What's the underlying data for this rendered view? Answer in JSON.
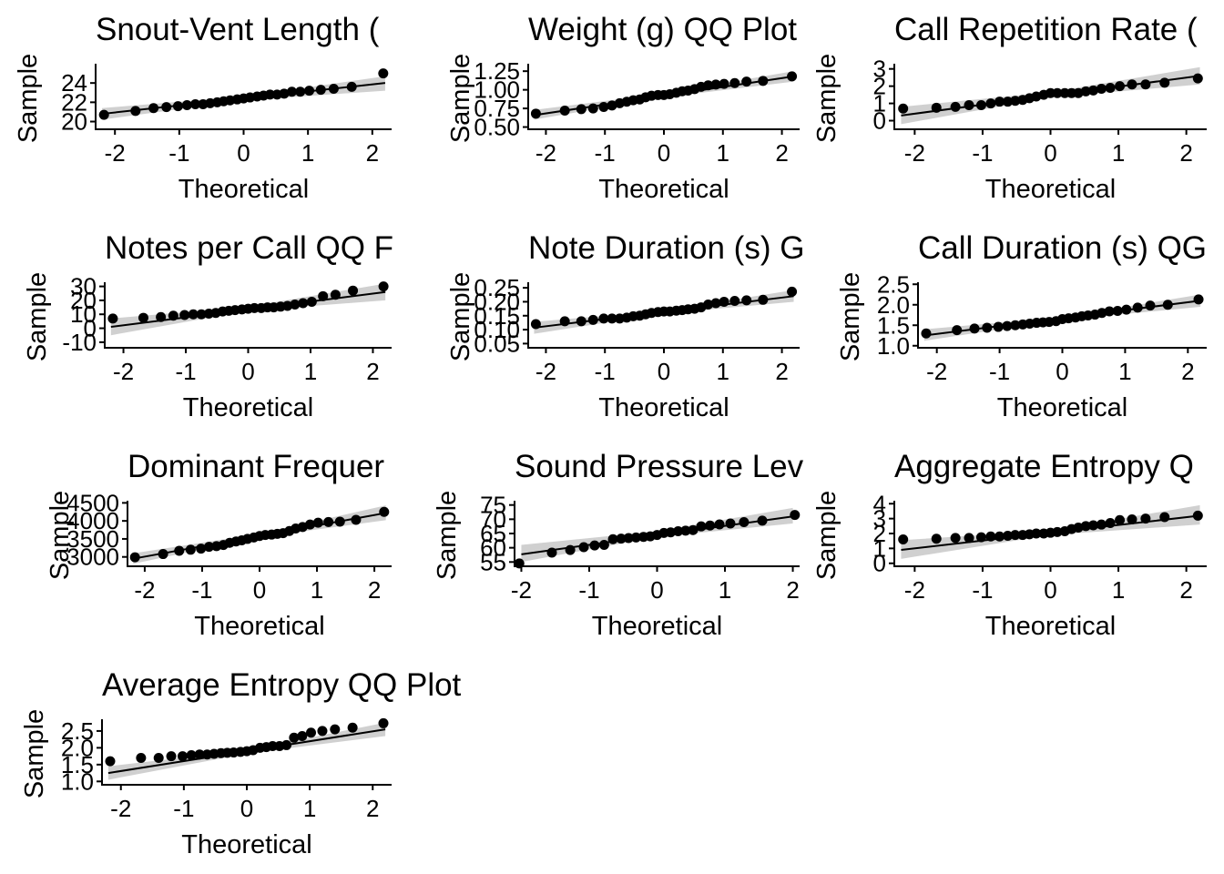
{
  "chart_data": [
    {
      "type": "scatter",
      "title": "Snout-Vent Length (",
      "xlabel": "Theoretical",
      "ylabel": "Sample",
      "xlim": [
        -2.3,
        2.3
      ],
      "ylim": [
        19.2,
        26.0
      ],
      "xticks": [
        -2,
        -1,
        0,
        1,
        2
      ],
      "xtick_labels": [
        "-2",
        "-1",
        "0",
        "1",
        "2"
      ],
      "yticks": [
        20,
        22,
        24
      ],
      "ytick_labels": [
        "20",
        "22",
        "24"
      ],
      "line": [
        [
          -2.2,
          20.8
        ],
        [
          2.2,
          24.0
        ]
      ],
      "band": [
        [
          -2.2,
          20.2,
          21.4
        ],
        [
          0,
          22.2,
          22.6
        ],
        [
          2.2,
          23.2,
          24.7
        ]
      ],
      "x": [
        -2.17,
        -1.68,
        -1.4,
        -1.2,
        -1.02,
        -0.88,
        -0.75,
        -0.63,
        -0.52,
        -0.41,
        -0.31,
        -0.21,
        -0.1,
        0,
        0.1,
        0.21,
        0.31,
        0.41,
        0.52,
        0.63,
        0.75,
        0.88,
        1.02,
        1.2,
        1.4,
        1.68,
        2.17
      ],
      "y": [
        20.7,
        21.1,
        21.4,
        21.5,
        21.6,
        21.7,
        21.8,
        21.8,
        21.9,
        22.0,
        22.1,
        22.2,
        22.3,
        22.4,
        22.5,
        22.6,
        22.7,
        22.8,
        22.8,
        22.9,
        23.1,
        23.1,
        23.2,
        23.3,
        23.4,
        23.6,
        25.0
      ]
    },
    {
      "type": "scatter",
      "title": "Weight (g) QQ Plot",
      "xlabel": "Theoretical",
      "ylabel": "Sample",
      "xlim": [
        -2.3,
        2.3
      ],
      "ylim": [
        0.47,
        1.35
      ],
      "xticks": [
        -2,
        -1,
        0,
        1,
        2
      ],
      "xtick_labels": [
        "-2",
        "-1",
        "0",
        "1",
        "2"
      ],
      "yticks": [
        0.5,
        0.75,
        1.0,
        1.25
      ],
      "ytick_labels": [
        "0.50",
        "0.75",
        "1.00",
        "1.25"
      ],
      "line": [
        [
          -2.2,
          0.66
        ],
        [
          2.2,
          1.18
        ]
      ],
      "band": [
        [
          -2.2,
          0.6,
          0.73
        ],
        [
          0,
          0.9,
          0.95
        ],
        [
          2.2,
          1.11,
          1.25
        ]
      ],
      "x": [
        -2.17,
        -1.68,
        -1.4,
        -1.2,
        -1.02,
        -0.88,
        -0.75,
        -0.63,
        -0.52,
        -0.41,
        -0.31,
        -0.21,
        -0.1,
        0,
        0.1,
        0.21,
        0.31,
        0.41,
        0.52,
        0.63,
        0.75,
        0.88,
        1.02,
        1.2,
        1.4,
        1.68,
        2.17
      ],
      "y": [
        0.68,
        0.72,
        0.74,
        0.75,
        0.77,
        0.79,
        0.82,
        0.84,
        0.86,
        0.87,
        0.9,
        0.92,
        0.93,
        0.93,
        0.94,
        0.96,
        0.98,
        0.99,
        1.01,
        1.04,
        1.06,
        1.07,
        1.08,
        1.09,
        1.11,
        1.12,
        1.18
      ]
    },
    {
      "type": "scatter",
      "title": "Call Repetition Rate (",
      "xlabel": "Theoretical",
      "ylabel": "Sample",
      "xlim": [
        -2.3,
        2.3
      ],
      "ylim": [
        -0.5,
        3.3
      ],
      "xticks": [
        -2,
        -1,
        0,
        1,
        2
      ],
      "xtick_labels": [
        "-2",
        "-1",
        "0",
        "1",
        "2"
      ],
      "yticks": [
        0,
        1,
        2,
        3
      ],
      "ytick_labels": [
        "0",
        "1",
        "2",
        "3"
      ],
      "line": [
        [
          -2.2,
          0.3
        ],
        [
          2.2,
          2.6
        ]
      ],
      "band": [
        [
          -2.2,
          -0.2,
          0.8
        ],
        [
          0,
          1.35,
          1.65
        ],
        [
          2.2,
          2.1,
          3.1
        ]
      ],
      "x": [
        -2.17,
        -1.68,
        -1.4,
        -1.2,
        -1.02,
        -0.88,
        -0.75,
        -0.63,
        -0.52,
        -0.41,
        -0.31,
        -0.21,
        -0.1,
        0,
        0.1,
        0.21,
        0.31,
        0.41,
        0.52,
        0.63,
        0.75,
        0.88,
        1.02,
        1.2,
        1.4,
        1.68,
        2.17
      ],
      "y": [
        0.7,
        0.75,
        0.8,
        0.9,
        0.9,
        1.0,
        1.1,
        1.1,
        1.15,
        1.2,
        1.3,
        1.4,
        1.5,
        1.6,
        1.6,
        1.6,
        1.6,
        1.6,
        1.7,
        1.75,
        1.85,
        1.9,
        2.0,
        2.1,
        2.1,
        2.2,
        2.45
      ]
    },
    {
      "type": "scatter",
      "title": "Notes per Call QQ F",
      "xlabel": "Theoretical",
      "ylabel": "Sample",
      "xlim": [
        -2.3,
        2.3
      ],
      "ylim": [
        -14,
        33
      ],
      "xticks": [
        -2,
        -1,
        0,
        1,
        2
      ],
      "xtick_labels": [
        "-2",
        "-1",
        "0",
        "1",
        "2"
      ],
      "yticks": [
        -10,
        0,
        10,
        20,
        30
      ],
      "ytick_labels": [
        "-10",
        "0",
        "10",
        "20",
        "30"
      ],
      "line": [
        [
          -2.2,
          1
        ],
        [
          2.2,
          26
        ]
      ],
      "band": [
        [
          -2.2,
          -5,
          7
        ],
        [
          0,
          12.5,
          15.5
        ],
        [
          2.2,
          20,
          32
        ]
      ],
      "x": [
        -2.17,
        -1.68,
        -1.4,
        -1.2,
        -1.02,
        -0.88,
        -0.75,
        -0.63,
        -0.52,
        -0.41,
        -0.31,
        -0.21,
        -0.1,
        0,
        0.1,
        0.21,
        0.31,
        0.41,
        0.52,
        0.63,
        0.75,
        0.88,
        1.02,
        1.2,
        1.4,
        1.68,
        2.17
      ],
      "y": [
        7,
        7.5,
        8,
        9,
        9.5,
        10,
        10,
        10.5,
        11,
        12,
        12.5,
        13,
        13.5,
        14,
        14.5,
        14.5,
        15,
        15,
        15.5,
        16,
        17,
        18,
        19,
        23,
        24,
        27,
        30
      ]
    },
    {
      "type": "scatter",
      "title": "Note Duration (s) G",
      "xlabel": "Theoretical",
      "ylabel": "Sample",
      "xlim": [
        -2.3,
        2.3
      ],
      "ylim": [
        0.035,
        0.27
      ],
      "xticks": [
        -2,
        -1,
        0,
        1,
        2
      ],
      "xtick_labels": [
        "-2",
        "-1",
        "0",
        "1",
        "2"
      ],
      "yticks": [
        0.05,
        0.1,
        0.15,
        0.2,
        0.25
      ],
      "ytick_labels": [
        "0.05",
        "0.10",
        "0.15",
        "0.20",
        "0.25"
      ],
      "line": [
        [
          -2.2,
          0.107
        ],
        [
          2.2,
          0.22
        ]
      ],
      "band": [
        [
          -2.2,
          0.085,
          0.128
        ],
        [
          0,
          0.158,
          0.168
        ],
        [
          2.2,
          0.2,
          0.242
        ]
      ],
      "x": [
        -2.17,
        -1.68,
        -1.4,
        -1.2,
        -1.02,
        -0.88,
        -0.75,
        -0.63,
        -0.52,
        -0.41,
        -0.31,
        -0.21,
        -0.1,
        0,
        0.1,
        0.21,
        0.31,
        0.41,
        0.52,
        0.63,
        0.75,
        0.88,
        1.02,
        1.2,
        1.4,
        1.68,
        2.17
      ],
      "y": [
        0.12,
        0.13,
        0.13,
        0.135,
        0.14,
        0.14,
        0.14,
        0.143,
        0.148,
        0.15,
        0.155,
        0.16,
        0.163,
        0.165,
        0.165,
        0.168,
        0.17,
        0.173,
        0.175,
        0.18,
        0.19,
        0.195,
        0.2,
        0.203,
        0.205,
        0.207,
        0.236
      ]
    },
    {
      "type": "scatter",
      "title": "Call Duration (s) QG",
      "xlabel": "Theoretical",
      "ylabel": "Sample",
      "xlim": [
        -2.3,
        2.3
      ],
      "ylim": [
        0.95,
        2.55
      ],
      "xticks": [
        -2,
        -1,
        0,
        1,
        2
      ],
      "xtick_labels": [
        "-2",
        "-1",
        "0",
        "1",
        "2"
      ],
      "yticks": [
        1.0,
        1.5,
        2.0,
        2.5
      ],
      "ytick_labels": [
        "1.0",
        "1.5",
        "2.0",
        "2.5"
      ],
      "line": [
        [
          -2.2,
          1.25
        ],
        [
          2.2,
          2.1
        ]
      ],
      "band": [
        [
          -2.2,
          1.12,
          1.4
        ],
        [
          0,
          1.63,
          1.7
        ],
        [
          2.2,
          1.95,
          2.25
        ]
      ],
      "x": [
        -2.17,
        -1.68,
        -1.4,
        -1.2,
        -1.02,
        -0.88,
        -0.75,
        -0.63,
        -0.52,
        -0.41,
        -0.31,
        -0.21,
        -0.1,
        0,
        0.1,
        0.21,
        0.31,
        0.41,
        0.52,
        0.63,
        0.75,
        0.88,
        1.02,
        1.2,
        1.4,
        1.68,
        2.17
      ],
      "y": [
        1.3,
        1.38,
        1.42,
        1.44,
        1.46,
        1.48,
        1.5,
        1.52,
        1.54,
        1.56,
        1.57,
        1.58,
        1.6,
        1.65,
        1.67,
        1.69,
        1.72,
        1.74,
        1.76,
        1.8,
        1.84,
        1.85,
        1.88,
        1.93,
        1.98,
        2.0,
        2.13
      ]
    },
    {
      "type": "scatter",
      "title": "Dominant Frequer",
      "xlabel": "Theoretical",
      "ylabel": "Sample",
      "xlim": [
        -2.3,
        2.3
      ],
      "ylim": [
        2740,
        4560
      ],
      "xticks": [
        -2,
        -1,
        0,
        1,
        2
      ],
      "xtick_labels": [
        "-2",
        "-1",
        "0",
        "1",
        "2"
      ],
      "yticks": [
        3000,
        3500,
        4000,
        4500
      ],
      "ytick_labels": [
        "3000",
        "3500",
        "4000",
        "4500"
      ],
      "line": [
        [
          -2.2,
          2950
        ],
        [
          2.2,
          4220
        ]
      ],
      "band": [
        [
          -2.2,
          2810,
          3100
        ],
        [
          0,
          3550,
          3640
        ],
        [
          2.2,
          4020,
          4430
        ]
      ],
      "x": [
        -2.17,
        -1.68,
        -1.4,
        -1.2,
        -1.02,
        -0.88,
        -0.75,
        -0.63,
        -0.52,
        -0.41,
        -0.31,
        -0.21,
        -0.1,
        0,
        0.1,
        0.21,
        0.31,
        0.41,
        0.52,
        0.63,
        0.75,
        0.88,
        1.02,
        1.2,
        1.4,
        1.68,
        2.17
      ],
      "y": [
        2990,
        3080,
        3170,
        3200,
        3230,
        3280,
        3300,
        3330,
        3390,
        3430,
        3460,
        3500,
        3540,
        3580,
        3610,
        3620,
        3640,
        3660,
        3720,
        3790,
        3830,
        3900,
        3950,
        3970,
        3980,
        4030,
        4250
      ]
    },
    {
      "type": "scatter",
      "title": "Sound Pressure Lev",
      "xlabel": "Theoretical",
      "ylabel": "Sample",
      "xlim": [
        -2.1,
        2.1
      ],
      "ylim": [
        53.5,
        76.5
      ],
      "xticks": [
        -2,
        -1,
        0,
        1,
        2
      ],
      "xtick_labels": [
        "-2",
        "-1",
        "0",
        "1",
        "2"
      ],
      "yticks": [
        55,
        60,
        65,
        70,
        75
      ],
      "ytick_labels": [
        "55",
        "60",
        "65",
        "70",
        "75"
      ],
      "line": [
        [
          -2.0,
          57.7
        ],
        [
          2.0,
          71.0
        ]
      ],
      "band": [
        [
          -2.0,
          55.0,
          61.0
        ],
        [
          0,
          63.8,
          65.8
        ],
        [
          2.0,
          68.5,
          74.0
        ]
      ],
      "x": [
        -2.03,
        -1.55,
        -1.28,
        -1.08,
        -0.92,
        -0.78,
        -0.65,
        -0.53,
        -0.42,
        -0.31,
        -0.2,
        -0.1,
        0,
        0.1,
        0.2,
        0.31,
        0.42,
        0.53,
        0.65,
        0.78,
        0.92,
        1.08,
        1.28,
        1.55,
        2.03
      ],
      "y": [
        54.5,
        58.3,
        59.2,
        60.2,
        60.8,
        61.0,
        63.0,
        63.2,
        63.4,
        63.6,
        63.8,
        64.0,
        64.5,
        65.2,
        65.4,
        65.8,
        66.0,
        66.2,
        67.5,
        67.8,
        68.2,
        68.5,
        69.0,
        69.5,
        71.5
      ]
    },
    {
      "type": "scatter",
      "title": "Aggregate Entropy Q",
      "xlabel": "Theoretical",
      "ylabel": "Sample",
      "xlim": [
        -2.3,
        2.3
      ],
      "ylim": [
        -0.2,
        4.2
      ],
      "xticks": [
        -2,
        -1,
        0,
        1,
        2
      ],
      "xtick_labels": [
        "-2",
        "-1",
        "0",
        "1",
        "2"
      ],
      "yticks": [
        0,
        1,
        2,
        3,
        4
      ],
      "ytick_labels": [
        "0",
        "1",
        "2",
        "3",
        "4"
      ],
      "line": [
        [
          -2.2,
          0.9
        ],
        [
          2.2,
          3.2
        ]
      ],
      "band": [
        [
          -2.2,
          0.3,
          1.55
        ],
        [
          0,
          1.9,
          2.2
        ],
        [
          2.2,
          2.6,
          3.9
        ]
      ],
      "x": [
        -2.17,
        -1.68,
        -1.4,
        -1.2,
        -1.02,
        -0.88,
        -0.75,
        -0.63,
        -0.52,
        -0.41,
        -0.31,
        -0.21,
        -0.1,
        0,
        0.1,
        0.21,
        0.31,
        0.41,
        0.52,
        0.63,
        0.75,
        0.88,
        1.02,
        1.2,
        1.4,
        1.68,
        2.17
      ],
      "y": [
        1.6,
        1.65,
        1.7,
        1.7,
        1.75,
        1.8,
        1.8,
        1.85,
        1.9,
        1.9,
        1.95,
        2.0,
        2.0,
        2.05,
        2.1,
        2.15,
        2.3,
        2.4,
        2.5,
        2.55,
        2.6,
        2.7,
        2.9,
        2.95,
        3.0,
        3.1,
        3.2
      ]
    },
    {
      "type": "scatter",
      "title": "Average Entropy QQ Plot",
      "xlabel": "Theoretical",
      "ylabel": "Sample",
      "xlim": [
        -2.3,
        2.3
      ],
      "ylim": [
        0.9,
        2.85
      ],
      "xticks": [
        -2,
        -1,
        0,
        1,
        2
      ],
      "xtick_labels": [
        "-2",
        "-1",
        "0",
        "1",
        "2"
      ],
      "yticks": [
        1.0,
        1.5,
        2.0,
        2.5
      ],
      "ytick_labels": [
        "1.0",
        "1.5",
        "2.0",
        "2.5"
      ],
      "line": [
        [
          -2.2,
          1.25
        ],
        [
          2.2,
          2.55
        ]
      ],
      "band": [
        [
          -2.2,
          1.05,
          1.45
        ],
        [
          0,
          1.83,
          1.93
        ],
        [
          2.2,
          2.35,
          2.75
        ]
      ],
      "x": [
        -2.17,
        -1.68,
        -1.4,
        -1.2,
        -1.02,
        -0.88,
        -0.75,
        -0.63,
        -0.52,
        -0.41,
        -0.31,
        -0.21,
        -0.1,
        0,
        0.1,
        0.21,
        0.31,
        0.41,
        0.52,
        0.63,
        0.75,
        0.88,
        1.02,
        1.2,
        1.4,
        1.68,
        2.17
      ],
      "y": [
        1.6,
        1.7,
        1.7,
        1.75,
        1.75,
        1.78,
        1.8,
        1.8,
        1.82,
        1.84,
        1.85,
        1.86,
        1.88,
        1.9,
        1.93,
        2.0,
        2.02,
        2.05,
        2.05,
        2.08,
        2.3,
        2.35,
        2.45,
        2.5,
        2.55,
        2.6,
        2.73
      ]
    }
  ]
}
